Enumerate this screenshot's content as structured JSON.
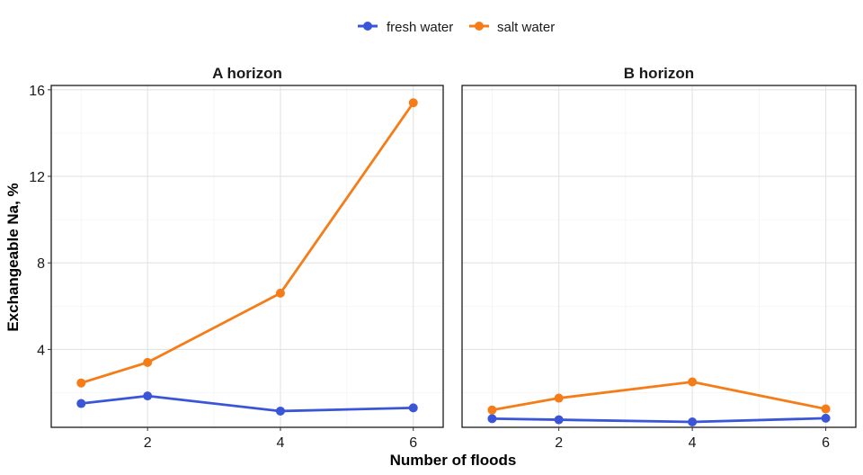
{
  "chart_data": {
    "type": "line",
    "xlabel": "Number of floods",
    "ylabel": "Exchangeable Na, %",
    "legend": {
      "position": "top",
      "entries": [
        {
          "name": "fresh water",
          "color": "#3a55d8"
        },
        {
          "name": "salt water",
          "color": "#f57c17"
        }
      ]
    },
    "x_ticks": [
      2,
      4,
      6
    ],
    "y_ticks": [
      4,
      8,
      12,
      16
    ],
    "xlim": [
      0.55,
      6.45
    ],
    "ylim": [
      0.4,
      16.2
    ],
    "grid": true,
    "panels": [
      {
        "title": "A horizon",
        "show_y_ticks": true,
        "series": [
          {
            "name": "fresh water",
            "x": [
              1,
              2,
              4,
              6
            ],
            "y": [
              1.5,
              1.85,
              1.15,
              1.3
            ]
          },
          {
            "name": "salt water",
            "x": [
              1,
              2,
              4,
              6
            ],
            "y": [
              2.45,
              3.4,
              6.6,
              15.4
            ]
          }
        ]
      },
      {
        "title": "B horizon",
        "show_y_ticks": false,
        "series": [
          {
            "name": "fresh water",
            "x": [
              1,
              2,
              4,
              6
            ],
            "y": [
              0.8,
              0.75,
              0.65,
              0.82
            ]
          },
          {
            "name": "salt water",
            "x": [
              1,
              2,
              4,
              6
            ],
            "y": [
              1.2,
              1.75,
              2.5,
              1.25
            ]
          }
        ]
      }
    ]
  }
}
